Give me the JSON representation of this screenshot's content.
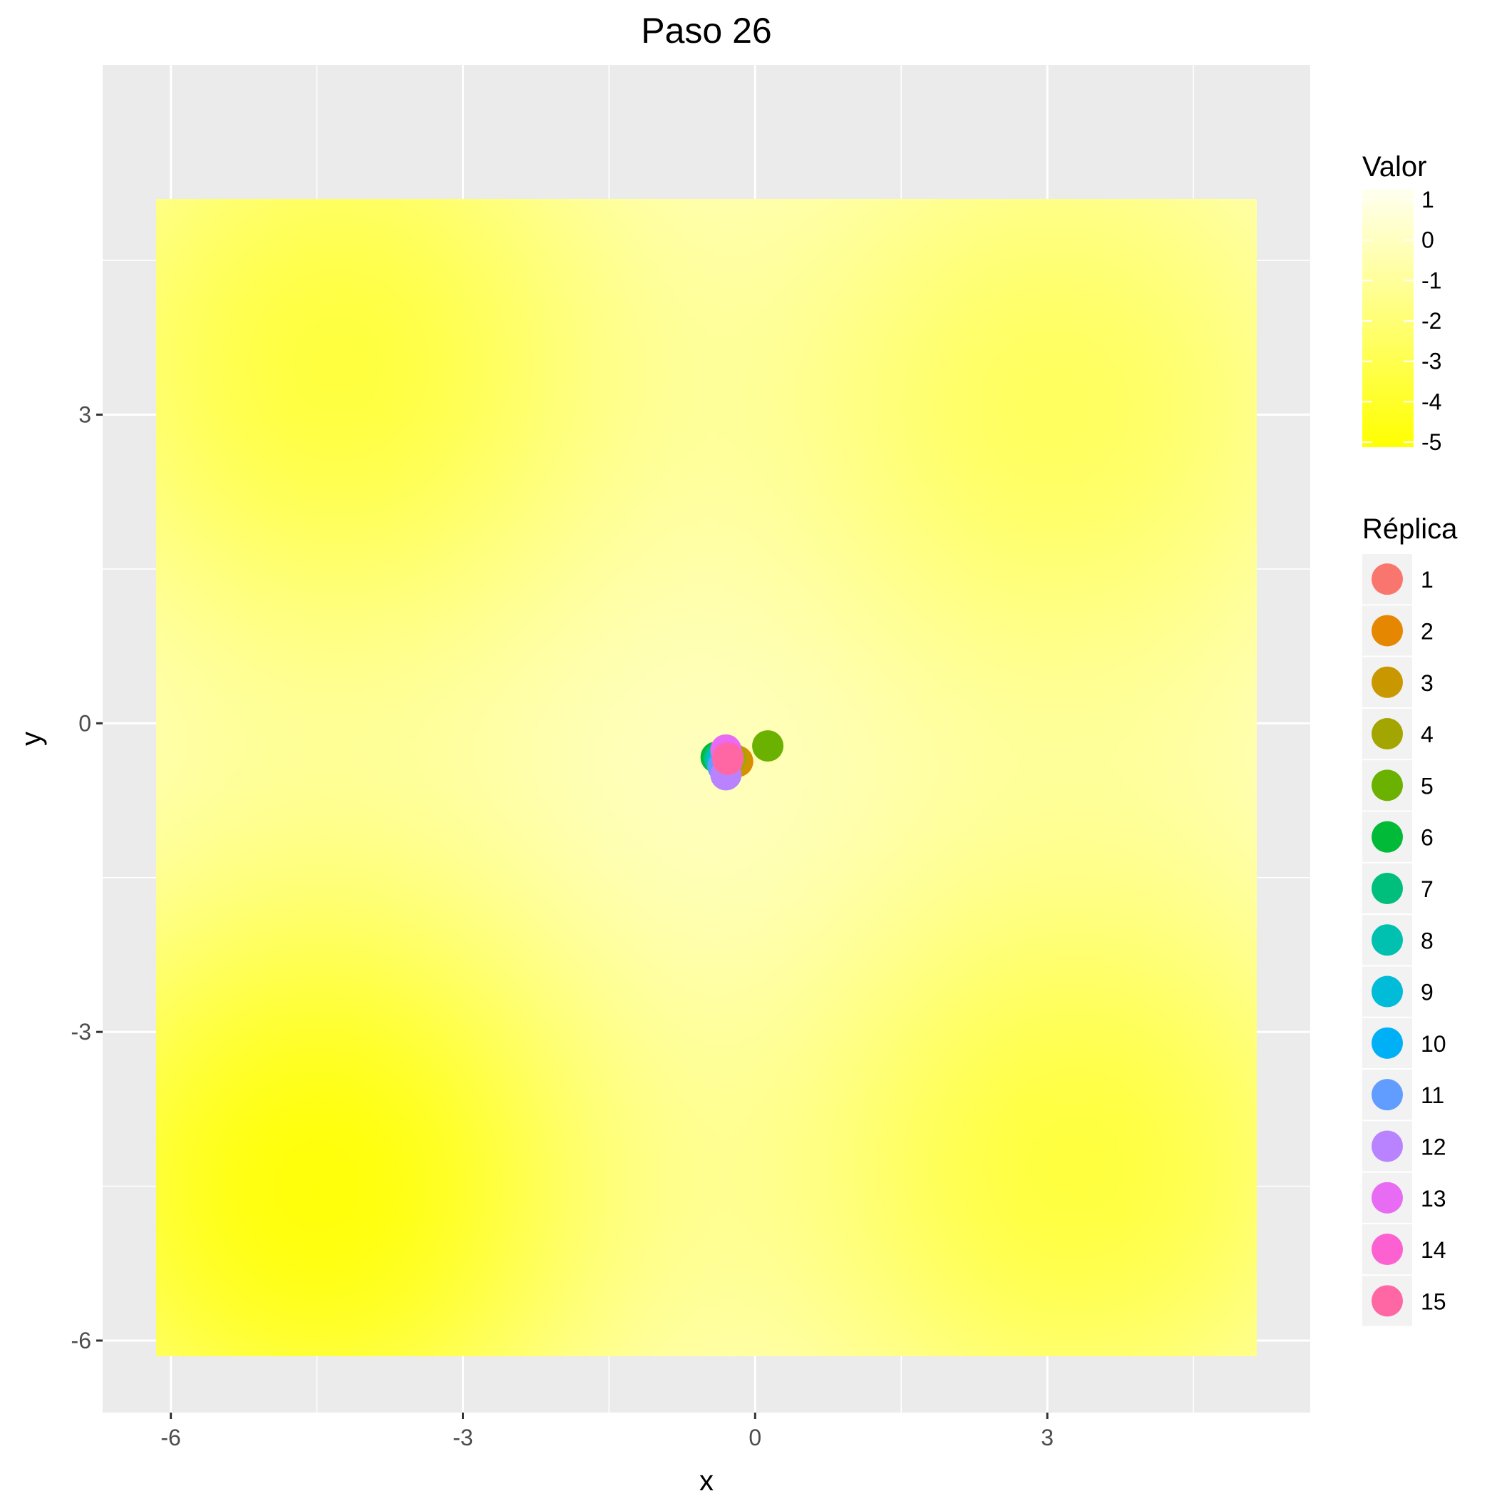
{
  "chart_data": {
    "type": "scatter",
    "title": "Paso 26",
    "xlabel": "x",
    "ylabel": "y",
    "xlim": [
      -6.7,
      5.7
    ],
    "ylim": [
      -6.7,
      6.4
    ],
    "x_ticks": [
      -6,
      -3,
      0,
      3
    ],
    "y_ticks": [
      -6,
      -3,
      0,
      3
    ],
    "x_tick_labels": [
      "-6",
      "-3",
      "0",
      "3"
    ],
    "y_tick_labels": [
      "-6",
      "-3",
      "0",
      "3"
    ],
    "grid": true,
    "background": {
      "type": "heatmap",
      "x_range": [
        -6.15,
        5.15
      ],
      "y_range": [
        -6.15,
        5.1
      ],
      "minima": [
        {
          "x": -4.5,
          "y": -4.5,
          "depth": 5.0
        },
        {
          "x": 3.3,
          "y": -4.3,
          "depth": 3.5
        },
        {
          "x": -4.3,
          "y": 3.5,
          "depth": 3.5
        },
        {
          "x": 3.1,
          "y": 3.1,
          "depth": 2.7
        }
      ],
      "color_low": "#ffff00",
      "color_high": "#fffff0"
    },
    "colorbar": {
      "title": "Valor",
      "labels": [
        "1",
        "0",
        "-1",
        "-2",
        "-3",
        "-4",
        "-5"
      ]
    },
    "legend": {
      "title": "Réplica",
      "placement": "right"
    },
    "series": [
      {
        "name": "1",
        "color": "#F8766D",
        "x": -0.22,
        "y": -0.35
      },
      {
        "name": "2",
        "color": "#E58700",
        "x": -0.18,
        "y": -0.37
      },
      {
        "name": "3",
        "color": "#C99800",
        "x": -0.2,
        "y": -0.36
      },
      {
        "name": "4",
        "color": "#A3A500",
        "x": -0.25,
        "y": -0.34
      },
      {
        "name": "5",
        "color": "#6BB100",
        "x": 0.13,
        "y": -0.22
      },
      {
        "name": "6",
        "color": "#00BA38",
        "x": -0.4,
        "y": -0.33
      },
      {
        "name": "7",
        "color": "#00BF7D",
        "x": -0.37,
        "y": -0.34
      },
      {
        "name": "8",
        "color": "#00C0AF",
        "x": -0.35,
        "y": -0.36
      },
      {
        "name": "9",
        "color": "#00BCD8",
        "x": -0.33,
        "y": -0.38
      },
      {
        "name": "10",
        "color": "#00B0F6",
        "x": -0.32,
        "y": -0.4
      },
      {
        "name": "11",
        "color": "#619CFF",
        "x": -0.33,
        "y": -0.42
      },
      {
        "name": "12",
        "color": "#B983FF",
        "x": -0.3,
        "y": -0.5
      },
      {
        "name": "13",
        "color": "#E76BF3",
        "x": -0.3,
        "y": -0.26
      },
      {
        "name": "14",
        "color": "#FD61D1",
        "x": -0.28,
        "y": -0.33
      },
      {
        "name": "15",
        "color": "#FF67A4",
        "x": -0.28,
        "y": -0.35
      }
    ]
  }
}
